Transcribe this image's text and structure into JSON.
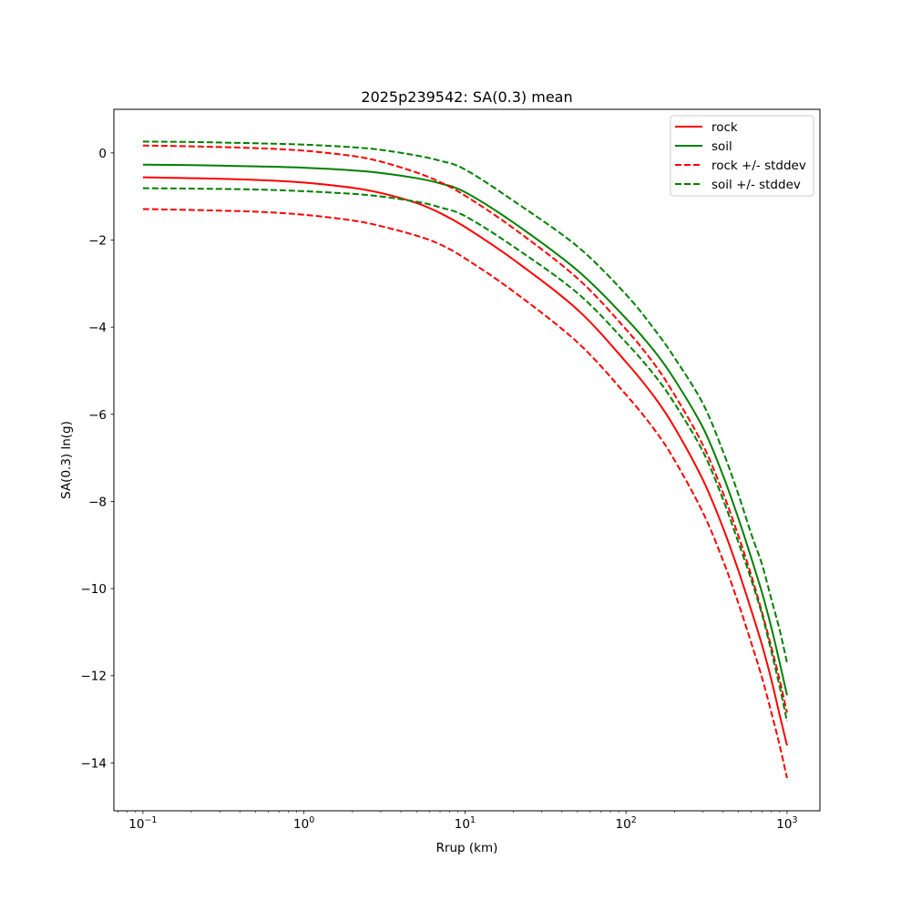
{
  "chart_data": {
    "type": "line",
    "title": "2025p239542: SA(0.3) mean",
    "xlabel": "Rrup (km)",
    "ylabel": "SA(0.3) ln(g)",
    "xscale": "log",
    "xlim": [
      0.066,
      1600
    ],
    "ylim": [
      -15.1,
      1.0
    ],
    "xticks": [
      {
        "value": 0.1,
        "base": "10",
        "exp": "−1"
      },
      {
        "value": 1,
        "base": "10",
        "exp": "0"
      },
      {
        "value": 10,
        "base": "10",
        "exp": "1"
      },
      {
        "value": 100,
        "base": "10",
        "exp": "2"
      },
      {
        "value": 1000,
        "base": "10",
        "exp": "3"
      }
    ],
    "yticks": [
      {
        "value": 0,
        "label": "0"
      },
      {
        "value": -2,
        "label": "−2"
      },
      {
        "value": -4,
        "label": "−4"
      },
      {
        "value": -6,
        "label": "−6"
      },
      {
        "value": -8,
        "label": "−8"
      },
      {
        "value": -10,
        "label": "−10"
      },
      {
        "value": -12,
        "label": "−12"
      },
      {
        "value": -14,
        "label": "−14"
      }
    ],
    "grid": false,
    "legend_position": "top-right",
    "legend": [
      {
        "label": "rock",
        "color": "#ff0000",
        "dash": "solid"
      },
      {
        "label": "soil",
        "color": "#008000",
        "dash": "solid"
      },
      {
        "label": "rock +/- stddev",
        "color": "#ff0000",
        "dash": "dashed"
      },
      {
        "label": "soil +/- stddev",
        "color": "#008000",
        "dash": "dashed"
      }
    ],
    "x": [
      0.1,
      0.2,
      0.5,
      1,
      2,
      3,
      5,
      7,
      10,
      20,
      50,
      100,
      150,
      200,
      300,
      400,
      500,
      600,
      700,
      800,
      900,
      1000
    ],
    "series": [
      {
        "name": "rock",
        "color": "#ff0000",
        "dash": "solid",
        "values": [
          -0.56,
          -0.58,
          -0.62,
          -0.68,
          -0.8,
          -0.92,
          -1.15,
          -1.38,
          -1.7,
          -2.45,
          -3.6,
          -4.8,
          -5.6,
          -6.3,
          -7.5,
          -8.6,
          -9.6,
          -10.5,
          -11.3,
          -12.1,
          -12.9,
          -13.6
        ]
      },
      {
        "name": "soil",
        "color": "#008000",
        "dash": "solid",
        "values": [
          -0.27,
          -0.28,
          -0.31,
          -0.34,
          -0.4,
          -0.46,
          -0.58,
          -0.7,
          -0.9,
          -1.6,
          -2.7,
          -3.8,
          -4.55,
          -5.2,
          -6.3,
          -7.4,
          -8.4,
          -9.3,
          -10.1,
          -10.9,
          -11.7,
          -12.45
        ]
      },
      {
        "name": "rock +/- stddev",
        "color": "#ff0000",
        "dash": "dashed",
        "values": [
          0.17,
          0.15,
          0.11,
          0.05,
          -0.07,
          -0.2,
          -0.45,
          -0.67,
          -0.98,
          -1.73,
          -2.88,
          -4.05,
          -4.85,
          -5.55,
          -6.7,
          -7.8,
          -8.8,
          -9.7,
          -10.55,
          -11.35,
          -12.1,
          -12.85
        ]
      },
      {
        "name": "rock +/- stddev",
        "color": "#ff0000",
        "dash": "dashed",
        "values": [
          -1.29,
          -1.31,
          -1.35,
          -1.42,
          -1.55,
          -1.68,
          -1.9,
          -2.1,
          -2.42,
          -3.18,
          -4.35,
          -5.55,
          -6.35,
          -7.05,
          -8.25,
          -9.35,
          -10.35,
          -11.25,
          -12.05,
          -12.85,
          -13.6,
          -14.35
        ]
      },
      {
        "name": "soil +/- stddev",
        "color": "#008000",
        "dash": "dashed",
        "values": [
          0.26,
          0.25,
          0.22,
          0.19,
          0.13,
          0.07,
          -0.06,
          -0.18,
          -0.38,
          -1.1,
          -2.15,
          -3.25,
          -4.05,
          -4.7,
          -5.75,
          -6.85,
          -7.85,
          -8.75,
          -9.45,
          -10.25,
          -10.95,
          -11.7
        ]
      },
      {
        "name": "soil +/- stddev",
        "color": "#008000",
        "dash": "dashed",
        "values": [
          -0.81,
          -0.82,
          -0.84,
          -0.88,
          -0.94,
          -1.0,
          -1.12,
          -1.25,
          -1.45,
          -2.15,
          -3.22,
          -4.35,
          -5.1,
          -5.75,
          -6.85,
          -7.95,
          -8.95,
          -9.8,
          -10.6,
          -11.45,
          -12.25,
          -13.05
        ]
      }
    ]
  }
}
